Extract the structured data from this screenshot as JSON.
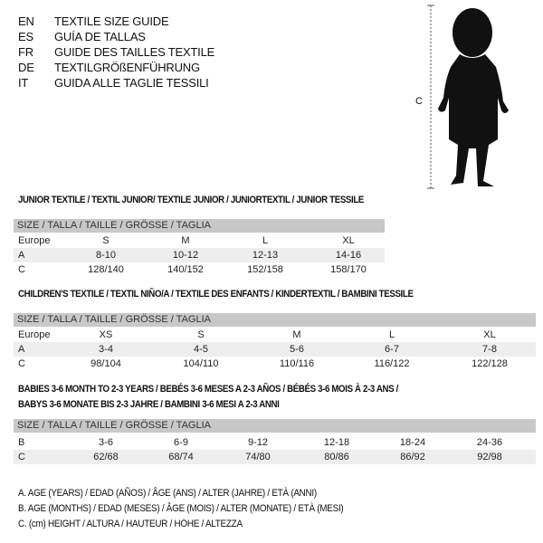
{
  "languages": [
    {
      "code": "EN",
      "title": "TEXTILE SIZE GUIDE"
    },
    {
      "code": "ES",
      "title": "GUÍA DE TALLAS"
    },
    {
      "code": "FR",
      "title": "GUIDE DES TAILLES TEXTILE"
    },
    {
      "code": "DE",
      "title": "TEXTILGRÖßENFÜHRUNG"
    },
    {
      "code": "IT",
      "title": "GUIDA ALLE TAGLIE TESSILI"
    }
  ],
  "figure": {
    "label": "C"
  },
  "size_header": "SIZE / TALLA / TAILLE / GRÖSSE / TAGLIA",
  "junior": {
    "title": "JUNIOR TEXTILE / TEXTIL JUNIOR/ TEXTILE JUNIOR / JUNIORTEXTIL / JUNIOR TESSILE",
    "rows": [
      {
        "label": "Europe",
        "values": [
          "S",
          "M",
          "L",
          "XL"
        ]
      },
      {
        "label": "A",
        "values": [
          "8-10",
          "10-12",
          "12-13",
          "14-16"
        ]
      },
      {
        "label": "C",
        "values": [
          "128/140",
          "140/152",
          "152/158",
          "158/170"
        ]
      }
    ]
  },
  "children": {
    "title": "CHILDREN'S TEXTILE / TEXTIL NIÑO/A / TEXTILE DES ENFANTS / KINDERTEXTIL / BAMBINI TESSILE",
    "rows": [
      {
        "label": "Europe",
        "values": [
          "XS",
          "S",
          "M",
          "L",
          "XL"
        ]
      },
      {
        "label": "A",
        "values": [
          "3-4",
          "4-5",
          "5-6",
          "6-7",
          "7-8"
        ]
      },
      {
        "label": "C",
        "values": [
          "98/104",
          "104/110",
          "110/116",
          "116/122",
          "122/128"
        ]
      }
    ]
  },
  "babies": {
    "title_line1": "BABIES 3-6 MONTH TO 2-3 YEARS / BEBÉS 3-6 MESES A 2-3 AÑOS / BÉBÉS 3-6 MOIS À 2-3 ANS /",
    "title_line2": "BABYS 3-6 MONATE BIS 2-3 JAHRE / BAMBINI 3-6 MESI A 2-3 ANNI",
    "rows": [
      {
        "label": "B",
        "values": [
          "3-6",
          "6-9",
          "9-12",
          "12-18",
          "18-24",
          "24-36"
        ]
      },
      {
        "label": "C",
        "values": [
          "62/68",
          "68/74",
          "74/80",
          "80/86",
          "86/92",
          "92/98"
        ]
      }
    ]
  },
  "legend": [
    "A. AGE (YEARS) / EDAD (AÑOS) / ÂGE (ANS) / ALTER (JAHRE) / ETÀ (ANNI)",
    "B. AGE (MONTHS) / EDAD (MESES) / ÂGE (MOIS) / ALTER (MONATE) / ETÀ (MESI)",
    "C. (cm) HEIGHT / ALTURA / HAUTEUR / HÖHE / ALTEZZA"
  ]
}
